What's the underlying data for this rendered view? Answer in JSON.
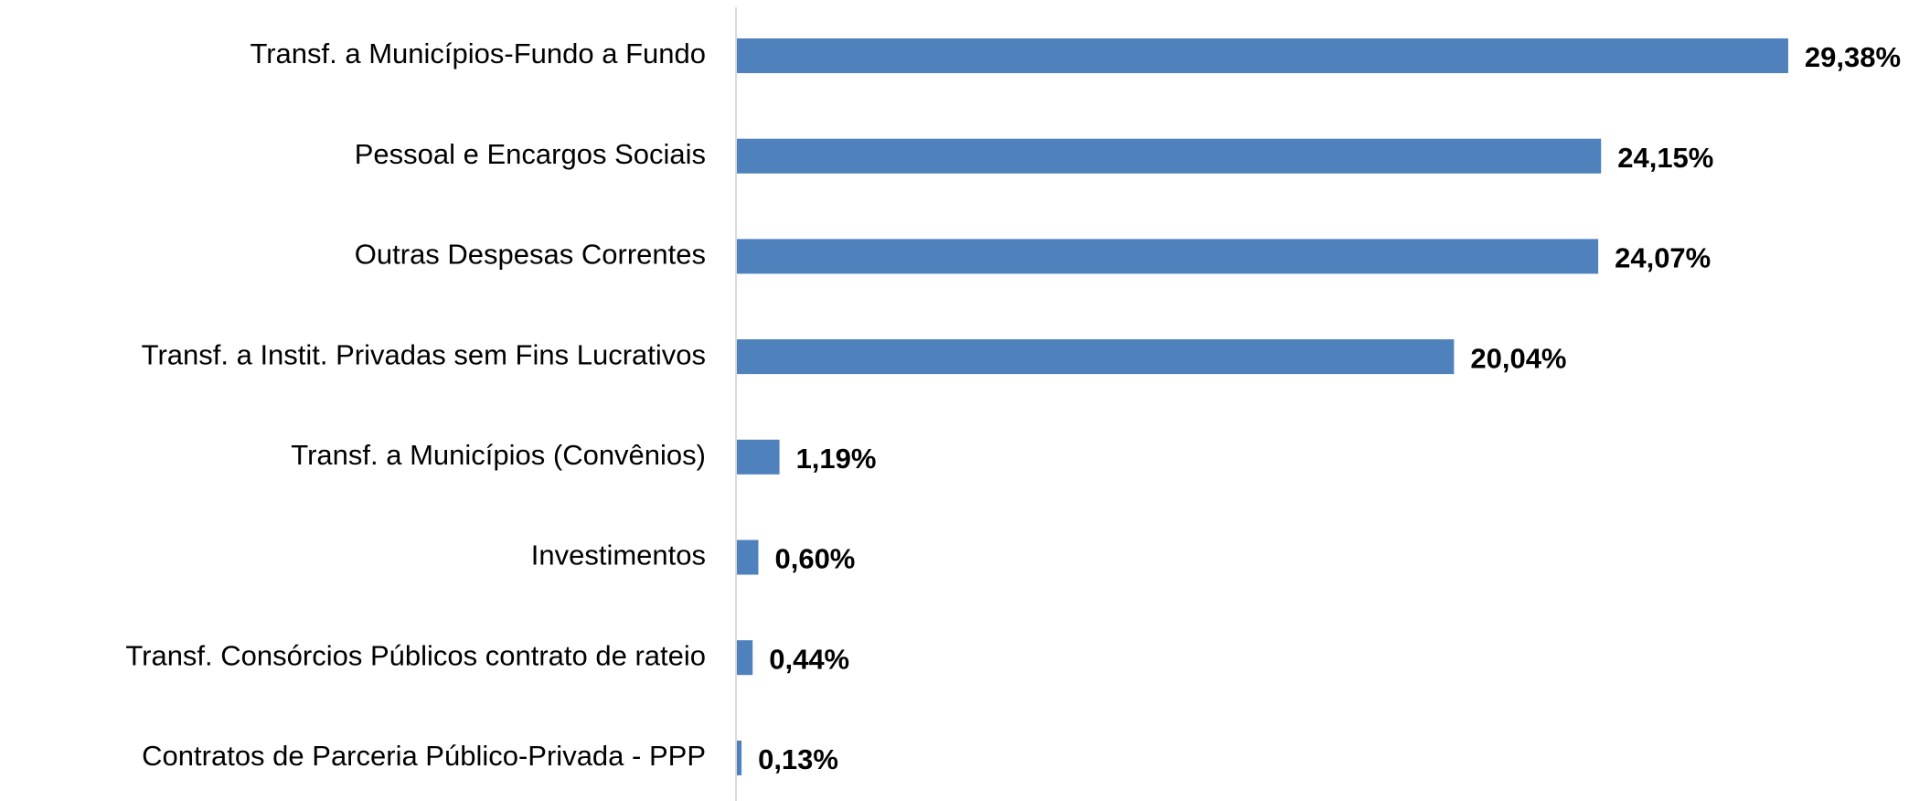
{
  "chart_data": {
    "type": "bar",
    "orientation": "horizontal",
    "categories": [
      "Transf. a Municípios-Fundo a Fundo",
      "Pessoal e Encargos Sociais",
      "Outras Despesas Correntes",
      "Transf. a Instit. Privadas sem Fins Lucrativos",
      "Transf. a Municípios (Convênios)",
      "Investimentos",
      "Transf. Consórcios Públicos contrato de rateio",
      "Contratos de Parceria Público-Privada - PPP"
    ],
    "values": [
      29.38,
      24.15,
      24.07,
      20.04,
      1.19,
      0.6,
      0.44,
      0.13
    ],
    "value_labels": [
      "29,38%",
      "24,15%",
      "24,07%",
      "20,04%",
      "1,19%",
      "0,60%",
      "0,44%",
      "0,13%"
    ],
    "color": "#4f81bd"
  }
}
